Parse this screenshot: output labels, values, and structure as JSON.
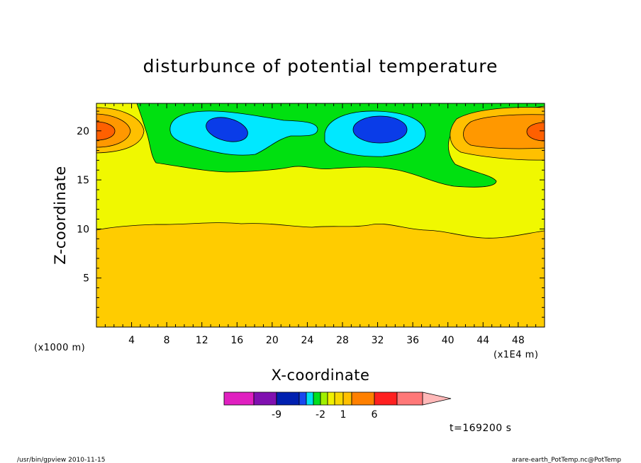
{
  "chart_data": {
    "type": "heatmap",
    "title": "disturbunce of potential temperature",
    "xlabel": "X-coordinate",
    "ylabel": "Z-coordinate",
    "x_unit_left": "(x1000 m)",
    "x_unit_right": "(x1E4 m)",
    "xlim": [
      0,
      51
    ],
    "ylim": [
      0,
      22.8
    ],
    "x_ticks": [
      "4",
      "8",
      "12",
      "16",
      "20",
      "24",
      "28",
      "32",
      "36",
      "40",
      "44",
      "48"
    ],
    "y_ticks": [
      "5",
      "10",
      "15",
      "20"
    ],
    "colorbar": {
      "colors": [
        "#e020c0",
        "#8010b0",
        "#0020b0",
        "#1848f0",
        "#00e0f0",
        "#00e020",
        "#a0f000",
        "#f0f000",
        "#f8d800",
        "#ffc000",
        "#ff8000",
        "#ff2020",
        "#ff7878",
        "#ffb8b8"
      ],
      "tick_labels": [
        "-9",
        "-2",
        "1",
        "6"
      ]
    },
    "time_label": "t=169200 s",
    "footer_left": "/usr/bin/gpview   2010-11-15",
    "footer_right": "arare-earth_PotTemp.nc@PotTemp"
  }
}
